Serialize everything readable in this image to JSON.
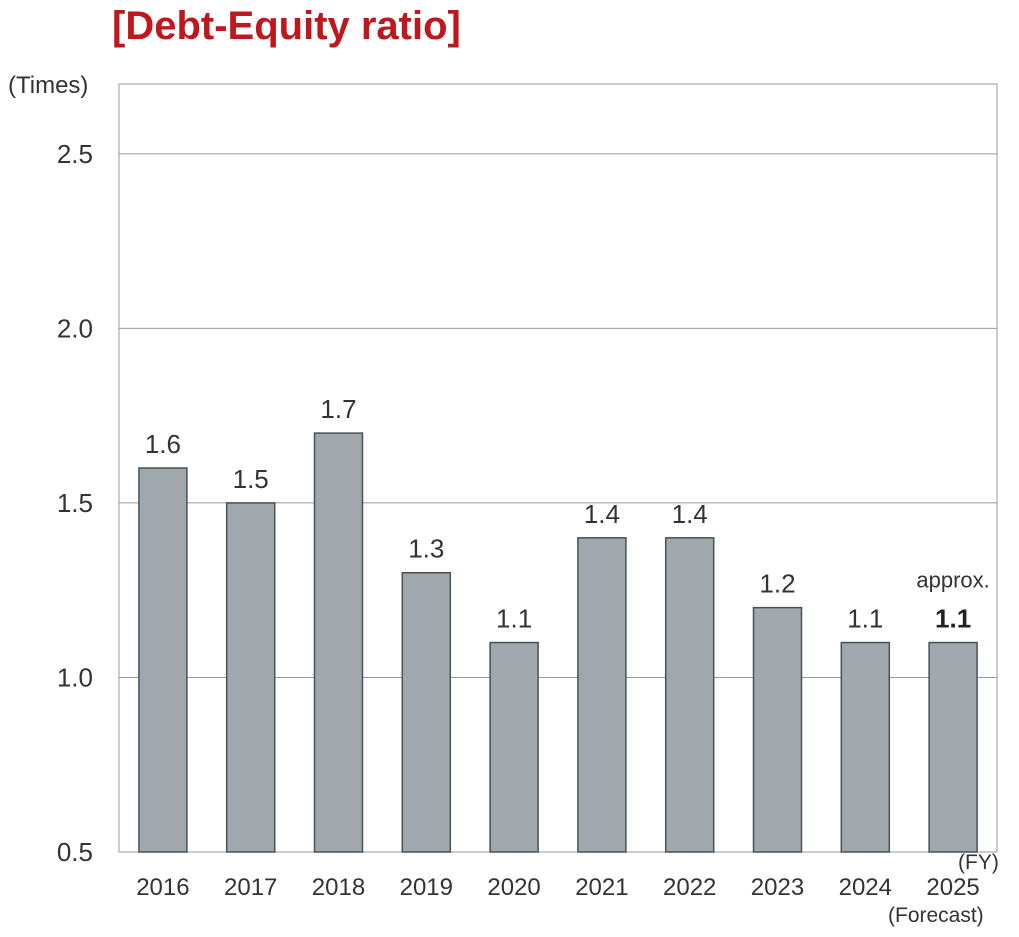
{
  "title": "[Debt-Equity ratio]",
  "unit_label": "(Times)",
  "x_unit_label": "(FY)",
  "forecast_note": "(Forecast)",
  "approx_label": "approx.",
  "edge_marks": [
    ")",
    ")"
  ],
  "colors": {
    "title": "#c0161e",
    "bar_fill": "#a0a8ad",
    "bar_stroke": "#4a5154",
    "grid": "#9a9a9a"
  },
  "chart_data": {
    "type": "bar",
    "title": "[Debt-Equity ratio]",
    "ylabel": "(Times)",
    "xlabel": "(FY)",
    "ylim": [
      0.5,
      2.7
    ],
    "yticks": [
      "0.5",
      "1.0",
      "1.5",
      "2.0",
      "2.5"
    ],
    "grid": true,
    "categories": [
      "2016",
      "2017",
      "2018",
      "2019",
      "2020",
      "2021",
      "2022",
      "2023",
      "2024",
      "2025"
    ],
    "values": [
      1.6,
      1.5,
      1.7,
      1.3,
      1.1,
      1.4,
      1.4,
      1.2,
      1.1,
      1.1
    ],
    "data_labels": [
      "1.6",
      "1.5",
      "1.7",
      "1.3",
      "1.1",
      "1.4",
      "1.4",
      "1.2",
      "1.1",
      "1.1"
    ],
    "annotations": [
      "2025 (Forecast)",
      "approx. 1.1"
    ]
  }
}
